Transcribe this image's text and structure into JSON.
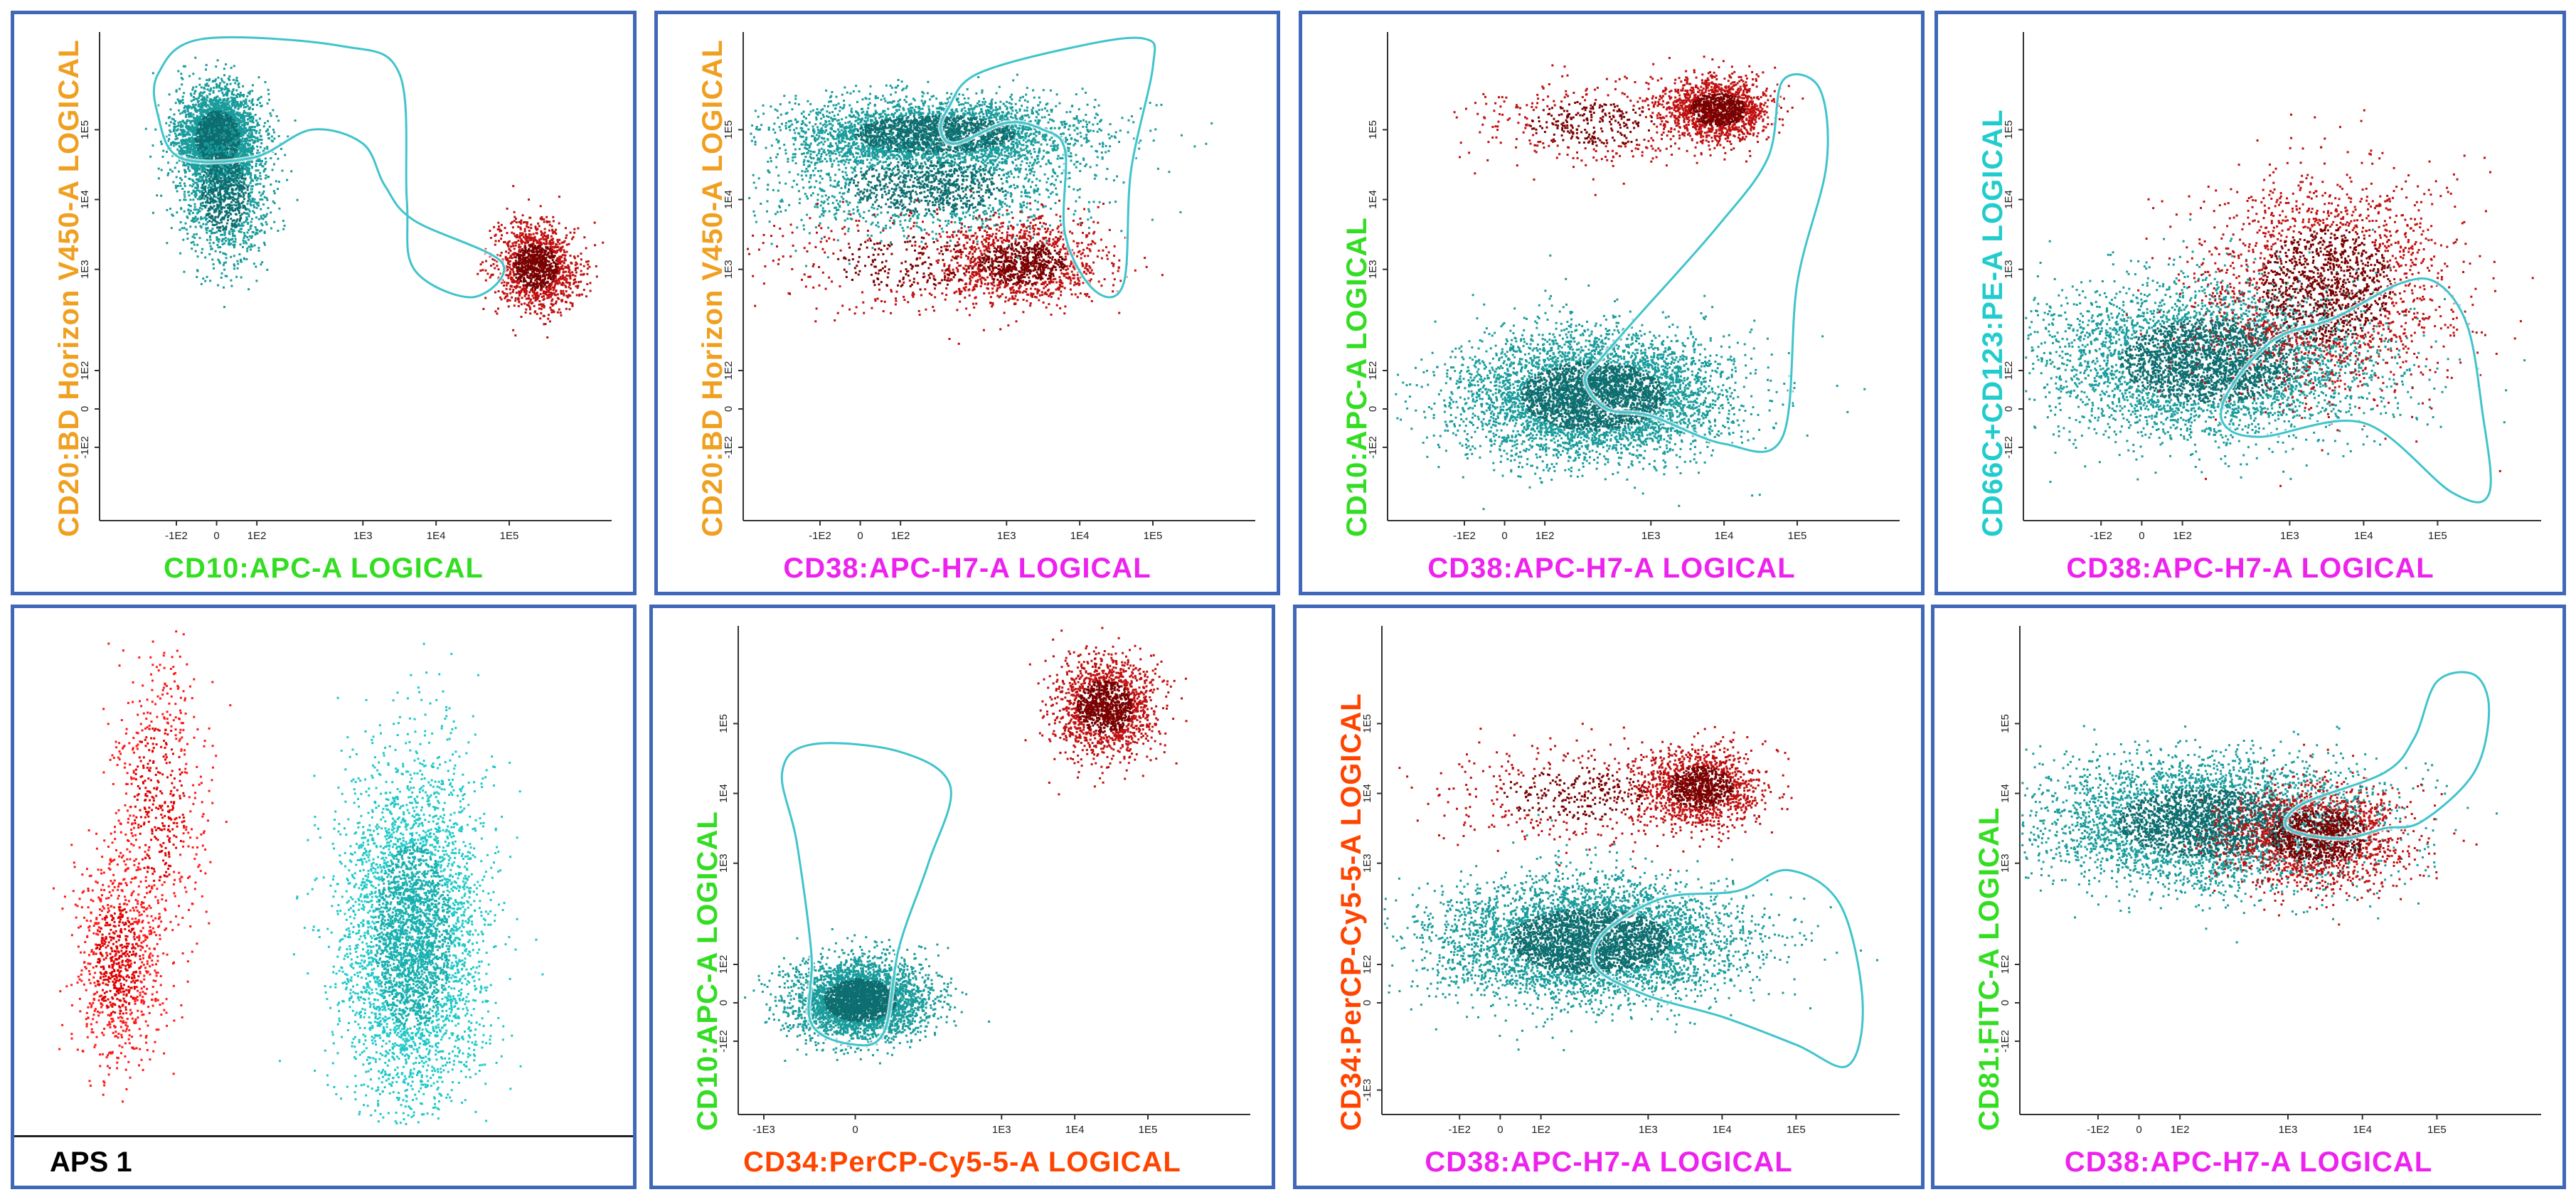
{
  "colors": {
    "panel_border": "#3f68b8",
    "population_normal": "#1a9c9c",
    "population_normal_dense": "#0d6e70",
    "population_abnormal": "#c01010",
    "population_abnormal_dense": "#7a0000",
    "gate": "#40c4cc"
  },
  "label_colors": {
    "orange": "#f0a020",
    "green": "#33dd22",
    "magenta": "#ee22ee",
    "cyan": "#22cccc",
    "red_orange": "#ff4400"
  },
  "chart_data": [
    {
      "id": "p1",
      "type": "scatter",
      "xlabel": "CD10:APC-A LOGICAL",
      "xlabel_color": "green",
      "ylabel": "CD20:BD Horizon V450-A LOGICAL",
      "ylabel_color": "orange",
      "xticks": [
        "-1E2",
        "0",
        "1E2",
        "1E3",
        "1E4",
        "1E5"
      ],
      "yticks": [
        "1E5",
        "1E4",
        "1E3",
        "1E2",
        "0",
        "-1E2"
      ],
      "xlim": [
        -1.6,
        5.4
      ],
      "ylim": [
        -1.6,
        5.4
      ],
      "populations": [
        {
          "name": "normal",
          "color": "teal",
          "count": 3200,
          "cx": 0.0,
          "cy": 3.9,
          "sx": 0.28,
          "sy": 0.35
        },
        {
          "name": "normal-tail",
          "color": "teal",
          "count": 1200,
          "cx": 0.1,
          "cy": 3.1,
          "sx": 0.3,
          "sy": 0.5
        },
        {
          "name": "abnormal",
          "color": "red",
          "count": 1400,
          "cx": 4.35,
          "cy": 2.05,
          "sx": 0.28,
          "sy": 0.3
        }
      ],
      "gate": [
        [
          -0.8,
          4.8
        ],
        [
          -0.2,
          5.3
        ],
        [
          1.7,
          5.2
        ],
        [
          2.5,
          4.8
        ],
        [
          2.6,
          3.0
        ],
        [
          2.7,
          2.0
        ],
        [
          3.5,
          1.6
        ],
        [
          3.9,
          2.1
        ],
        [
          2.7,
          2.7
        ],
        [
          2.3,
          3.2
        ],
        [
          2.0,
          3.8
        ],
        [
          1.3,
          4.0
        ],
        [
          0.5,
          3.6
        ],
        [
          -0.5,
          3.6
        ],
        [
          -0.8,
          4.2
        ]
      ]
    },
    {
      "id": "p2",
      "type": "scatter",
      "xlabel": "CD38:APC-H7-A LOGICAL",
      "xlabel_color": "magenta",
      "ylabel": "CD20:BD Horizon V450-A LOGICAL",
      "ylabel_color": "orange",
      "xticks": [
        "-1E2",
        "0",
        "1E2",
        "1E3",
        "1E4",
        "1E5"
      ],
      "yticks": [
        "1E5",
        "1E4",
        "1E3",
        "1E2",
        "0",
        "-1E2"
      ],
      "xlim": [
        -1.6,
        5.4
      ],
      "ylim": [
        -1.6,
        5.4
      ],
      "populations": [
        {
          "name": "normal-bright",
          "color": "teal",
          "count": 3400,
          "cx": 1.0,
          "cy": 3.95,
          "sx": 1.0,
          "sy": 0.25
        },
        {
          "name": "normal-mid",
          "color": "teal",
          "count": 1500,
          "cx": 0.9,
          "cy": 3.2,
          "sx": 1.0,
          "sy": 0.35
        },
        {
          "name": "abnormal",
          "color": "red",
          "count": 1300,
          "cx": 2.2,
          "cy": 2.1,
          "sx": 0.55,
          "sy": 0.28
        },
        {
          "name": "abnormal-spread",
          "color": "red",
          "count": 400,
          "cx": 0.6,
          "cy": 2.1,
          "sx": 0.9,
          "sy": 0.35
        }
      ],
      "gate": [
        [
          1.2,
          4.3
        ],
        [
          1.6,
          4.8
        ],
        [
          3.0,
          5.2
        ],
        [
          3.9,
          5.3
        ],
        [
          4.0,
          4.9
        ],
        [
          3.7,
          3.4
        ],
        [
          3.6,
          1.8
        ],
        [
          3.2,
          1.7
        ],
        [
          2.8,
          2.5
        ],
        [
          2.8,
          3.7
        ],
        [
          2.5,
          4.0
        ],
        [
          2.0,
          4.1
        ],
        [
          1.3,
          3.8
        ],
        [
          1.1,
          4.0
        ]
      ]
    },
    {
      "id": "p3",
      "type": "scatter",
      "xlabel": "CD38:APC-H7-A LOGICAL",
      "xlabel_color": "magenta",
      "ylabel": "CD10:APC-A LOGICAL",
      "ylabel_color": "green",
      "xticks": [
        "-1E2",
        "0",
        "1E2",
        "1E3",
        "1E4",
        "1E5"
      ],
      "yticks": [
        "1E5",
        "1E4",
        "1E3",
        "1E2",
        "0",
        "-1E2"
      ],
      "xlim": [
        -1.6,
        5.4
      ],
      "ylim": [
        -1.6,
        5.4
      ],
      "populations": [
        {
          "name": "abnormal",
          "color": "red",
          "count": 1500,
          "cx": 2.9,
          "cy": 4.3,
          "sx": 0.35,
          "sy": 0.22
        },
        {
          "name": "abnormal-spread",
          "color": "red",
          "count": 500,
          "cx": 1.2,
          "cy": 4.1,
          "sx": 0.8,
          "sy": 0.3
        },
        {
          "name": "normal",
          "color": "teal",
          "count": 5000,
          "cx": 1.2,
          "cy": 0.2,
          "sx": 0.9,
          "sy": 0.45
        }
      ],
      "gate": [
        [
          1.3,
          0.7
        ],
        [
          1.8,
          1.3
        ],
        [
          2.9,
          2.6
        ],
        [
          3.6,
          3.6
        ],
        [
          3.8,
          4.7
        ],
        [
          4.3,
          4.6
        ],
        [
          4.4,
          3.5
        ],
        [
          4.0,
          1.8
        ],
        [
          3.8,
          -0.4
        ],
        [
          3.0,
          -0.5
        ],
        [
          2.0,
          -0.1
        ],
        [
          1.4,
          0.0
        ],
        [
          1.1,
          0.4
        ]
      ]
    },
    {
      "id": "p4",
      "type": "scatter",
      "xlabel": "CD38:APC-H7-A LOGICAL",
      "xlabel_color": "magenta",
      "ylabel": "CD66C+CD123:PE-A LOGICAL",
      "ylabel_color": "cyan",
      "xticks": [
        "-1E2",
        "0",
        "1E2",
        "1E3",
        "1E4",
        "1E5"
      ],
      "yticks": [
        "1E5",
        "1E4",
        "1E3",
        "1E2",
        "0",
        "-1E2"
      ],
      "xlim": [
        -1.6,
        5.4
      ],
      "ylim": [
        -1.6,
        5.4
      ],
      "populations": [
        {
          "name": "normal",
          "color": "teal",
          "count": 4500,
          "cx": 0.9,
          "cy": 0.7,
          "sx": 1.1,
          "sy": 0.55
        },
        {
          "name": "abnormal",
          "color": "red",
          "count": 2200,
          "cx": 2.5,
          "cy": 1.8,
          "sx": 0.8,
          "sy": 0.75
        }
      ],
      "gate": [
        [
          1.2,
          0.3
        ],
        [
          1.8,
          1.0
        ],
        [
          2.6,
          1.3
        ],
        [
          3.5,
          1.8
        ],
        [
          4.0,
          1.8
        ],
        [
          4.4,
          1.2
        ],
        [
          4.6,
          0.0
        ],
        [
          4.7,
          -1.2
        ],
        [
          4.2,
          -1.2
        ],
        [
          3.0,
          -0.2
        ],
        [
          1.6,
          -0.4
        ],
        [
          1.1,
          -0.2
        ]
      ]
    },
    {
      "id": "p5",
      "type": "scatter",
      "axes": false,
      "label": "APS 1",
      "xlim": [
        0,
        1
      ],
      "ylim": [
        0,
        1
      ],
      "populations": [
        {
          "name": "red-population",
          "color": "bright-red",
          "count": 900,
          "cx": 0.15,
          "cy": 0.33,
          "sx": 0.035,
          "sy": 0.1
        },
        {
          "name": "red-tail",
          "color": "bright-red",
          "count": 600,
          "cx": 0.22,
          "cy": 0.65,
          "sx": 0.04,
          "sy": 0.15
        },
        {
          "name": "teal-population",
          "color": "bright-teal",
          "count": 4200,
          "cx": 0.65,
          "cy": 0.38,
          "sx": 0.06,
          "sy": 0.17
        }
      ]
    },
    {
      "id": "p6",
      "type": "scatter",
      "xlabel": "CD34:PerCP-Cy5-5-A LOGICAL",
      "xlabel_color": "red_orange",
      "ylabel": "CD10:APC-A LOGICAL",
      "ylabel_color": "green",
      "xticks": [
        "-1E3",
        "0",
        "1E3",
        "1E4",
        "1E5"
      ],
      "yticks": [
        "1E5",
        "1E4",
        "1E3",
        "1E2",
        "0",
        "-1E2"
      ],
      "xlim": [
        -1.6,
        5.4
      ],
      "ylim": [
        -1.6,
        5.4
      ],
      "populations": [
        {
          "name": "abnormal",
          "color": "red",
          "count": 1600,
          "cx": 3.4,
          "cy": 4.25,
          "sx": 0.35,
          "sy": 0.35
        },
        {
          "name": "normal",
          "color": "teal",
          "count": 3600,
          "cx": 0.05,
          "cy": 0.05,
          "sx": 0.45,
          "sy": 0.28
        }
      ],
      "gate": [
        [
          -0.6,
          0.7
        ],
        [
          -0.8,
          2.3
        ],
        [
          -1.0,
          3.3
        ],
        [
          -0.6,
          3.7
        ],
        [
          0.6,
          3.6
        ],
        [
          1.3,
          3.1
        ],
        [
          1.0,
          2.0
        ],
        [
          0.6,
          0.8
        ],
        [
          0.4,
          -0.4
        ],
        [
          0.0,
          -0.6
        ],
        [
          -0.6,
          -0.3
        ]
      ]
    },
    {
      "id": "p7",
      "type": "scatter",
      "xlabel": "CD38:APC-H7-A LOGICAL",
      "xlabel_color": "magenta",
      "ylabel": "CD34:PerCP-Cy5-5-A LOGICAL",
      "ylabel_color": "red_orange",
      "xticks": [
        "-1E2",
        "0",
        "1E2",
        "1E3",
        "1E4",
        "1E5"
      ],
      "yticks": [
        "1E5",
        "1E4",
        "1E3",
        "1E2",
        "0",
        "-1E3"
      ],
      "xlim": [
        -1.6,
        5.4
      ],
      "ylim": [
        -1.6,
        5.4
      ],
      "populations": [
        {
          "name": "abnormal",
          "color": "red",
          "count": 1400,
          "cx": 2.7,
          "cy": 3.1,
          "sx": 0.4,
          "sy": 0.28
        },
        {
          "name": "abnormal-spread",
          "color": "red",
          "count": 500,
          "cx": 1.0,
          "cy": 3.0,
          "sx": 0.9,
          "sy": 0.35
        },
        {
          "name": "normal",
          "color": "teal",
          "count": 5000,
          "cx": 1.2,
          "cy": 0.9,
          "sx": 1.0,
          "sy": 0.42
        }
      ],
      "gate": [
        [
          1.4,
          1.0
        ],
        [
          2.2,
          1.5
        ],
        [
          3.2,
          1.6
        ],
        [
          3.9,
          1.9
        ],
        [
          4.6,
          1.4
        ],
        [
          4.9,
          0.0
        ],
        [
          4.7,
          -0.9
        ],
        [
          4.0,
          -0.6
        ],
        [
          3.0,
          -0.2
        ],
        [
          2.0,
          0.1
        ],
        [
          1.3,
          0.5
        ]
      ]
    },
    {
      "id": "p8",
      "type": "scatter",
      "xlabel": "CD38:APC-H7-A LOGICAL",
      "xlabel_color": "magenta",
      "ylabel": "CD81:FITC-A LOGICAL",
      "ylabel_color": "green",
      "xticks": [
        "-1E2",
        "0",
        "1E2",
        "1E3",
        "1E4",
        "1E5"
      ],
      "yticks": [
        "1E5",
        "1E4",
        "1E3",
        "1E2",
        "0",
        "-1E2"
      ],
      "xlim": [
        -1.6,
        5.4
      ],
      "ylim": [
        -1.6,
        5.4
      ],
      "populations": [
        {
          "name": "normal",
          "color": "teal",
          "count": 4200,
          "cx": 0.9,
          "cy": 2.6,
          "sx": 1.1,
          "sy": 0.45
        },
        {
          "name": "abnormal",
          "color": "red",
          "count": 1800,
          "cx": 2.4,
          "cy": 2.4,
          "sx": 0.6,
          "sy": 0.35
        }
      ],
      "gate": [
        [
          2.0,
          2.5
        ],
        [
          2.2,
          2.85
        ],
        [
          3.3,
          3.3
        ],
        [
          3.7,
          3.8
        ],
        [
          4.0,
          4.6
        ],
        [
          4.5,
          4.7
        ],
        [
          4.7,
          4.2
        ],
        [
          4.5,
          3.3
        ],
        [
          3.8,
          2.6
        ],
        [
          3.3,
          2.5
        ],
        [
          2.7,
          2.35
        ]
      ]
    }
  ]
}
